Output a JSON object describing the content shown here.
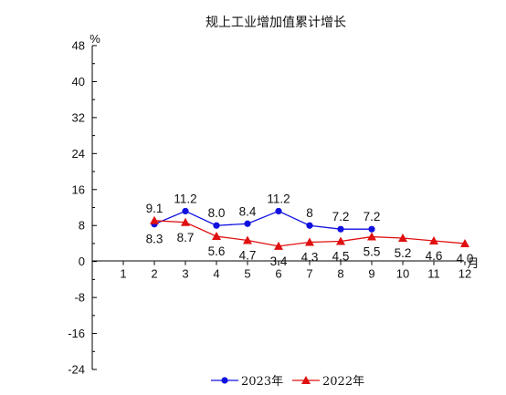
{
  "chart_data": {
    "type": "line",
    "title": "规上工业增加值累计增长",
    "y_unit": "%",
    "x_unit": "月",
    "x": [
      "1",
      "2",
      "3",
      "4",
      "5",
      "6",
      "7",
      "8",
      "9",
      "10",
      "11",
      "12"
    ],
    "ylim": [
      -24,
      48
    ],
    "y_ticks": [
      "-24",
      "-16",
      "-8",
      "0",
      "8",
      "16",
      "24",
      "32",
      "40",
      "48"
    ],
    "grid": false,
    "legend_position": "bottom-center",
    "series": [
      {
        "name": "2023年",
        "color": "#1010e0",
        "marker": "circle",
        "x": [
          2,
          3,
          4,
          5,
          6,
          7,
          8,
          9
        ],
        "values": [
          8.3,
          11.2,
          8.0,
          8.4,
          11.2,
          8,
          7.2,
          7.2
        ],
        "labels": [
          "8.3",
          "11.2",
          "8.0",
          "8.4",
          "11.2",
          "8",
          "7.2",
          "7.2"
        ]
      },
      {
        "name": "2022年",
        "color": "#e01010",
        "marker": "triangle",
        "x": [
          2,
          3,
          4,
          5,
          6,
          7,
          8,
          9,
          10,
          11,
          12
        ],
        "values": [
          9.1,
          8.7,
          5.6,
          4.7,
          3.4,
          4.3,
          4.5,
          5.5,
          5.2,
          4.6,
          4.0
        ],
        "labels": [
          "9.1",
          "8.7",
          "5.6",
          "4.7",
          "3.4",
          "4.3",
          "4.5",
          "5.5",
          "5.2",
          "4.6",
          "4.0"
        ]
      }
    ]
  }
}
